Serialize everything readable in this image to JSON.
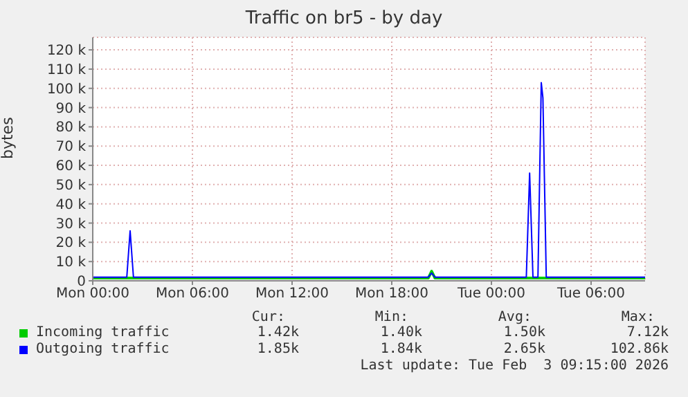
{
  "chart_data": {
    "type": "line",
    "title": "Traffic on br5 - by day",
    "ylabel": "bytes",
    "xlim": [
      "2026-02-02T00:00",
      "2026-02-03T09:15"
    ],
    "xticks": [
      {
        "value": "2026-02-02T00:00",
        "label": "Mon 00:00"
      },
      {
        "value": "2026-02-02T06:00",
        "label": "Mon 06:00"
      },
      {
        "value": "2026-02-02T12:00",
        "label": "Mon 12:00"
      },
      {
        "value": "2026-02-02T18:00",
        "label": "Mon 18:00"
      },
      {
        "value": "2026-02-03T00:00",
        "label": "Tue 00:00"
      },
      {
        "value": "2026-02-03T06:00",
        "label": "Tue 06:00"
      }
    ],
    "ylim": [
      0,
      126500
    ],
    "yticks": [
      {
        "value": 0,
        "label": "0"
      },
      {
        "value": 10000,
        "label": "10 k"
      },
      {
        "value": 20000,
        "label": "20 k"
      },
      {
        "value": 30000,
        "label": "30 k"
      },
      {
        "value": 40000,
        "label": "40 k"
      },
      {
        "value": 50000,
        "label": "50 k"
      },
      {
        "value": 60000,
        "label": "60 k"
      },
      {
        "value": 70000,
        "label": "70 k"
      },
      {
        "value": 80000,
        "label": "80 k"
      },
      {
        "value": 90000,
        "label": "90 k"
      },
      {
        "value": 100000,
        "label": "100 k"
      },
      {
        "value": 110000,
        "label": "110 k"
      },
      {
        "value": 120000,
        "label": "120 k"
      }
    ],
    "grid": true,
    "legend": "bottom",
    "marker": "none",
    "line_style": "solid",
    "series": [
      {
        "name": "Incoming traffic",
        "color": "#00cc00",
        "x": [
          "2026-02-02T00:00",
          "2026-02-02T20:12",
          "2026-02-02T20:24",
          "2026-02-02T20:36",
          "2026-02-03T09:15"
        ],
        "values": [
          1400,
          1400,
          5000,
          1400,
          1400
        ]
      },
      {
        "name": "Outgoing traffic",
        "color": "#0000ff",
        "x": [
          "2026-02-02T00:00",
          "2026-02-02T02:03",
          "2026-02-02T02:15",
          "2026-02-02T02:27",
          "2026-02-02T20:12",
          "2026-02-02T20:24",
          "2026-02-02T20:36",
          "2026-02-03T02:06",
          "2026-02-03T02:18",
          "2026-02-03T02:30",
          "2026-02-03T02:48",
          "2026-02-03T03:00",
          "2026-02-03T03:06",
          "2026-02-03T03:18",
          "2026-02-03T09:15"
        ],
        "values": [
          1900,
          1900,
          26000,
          1900,
          1900,
          4000,
          1900,
          1900,
          56000,
          1900,
          1900,
          103000,
          95000,
          1900,
          1900
        ]
      }
    ],
    "annotations": [
      "Cur:",
      "Min:",
      "Avg:",
      "Max:",
      "1.42k",
      "1.40k",
      "1.50k",
      "7.12k",
      "1.85k",
      "1.84k",
      "2.65k",
      "102.86k",
      "Last update: Tue Feb  3 09:15:00 2026"
    ]
  }
}
